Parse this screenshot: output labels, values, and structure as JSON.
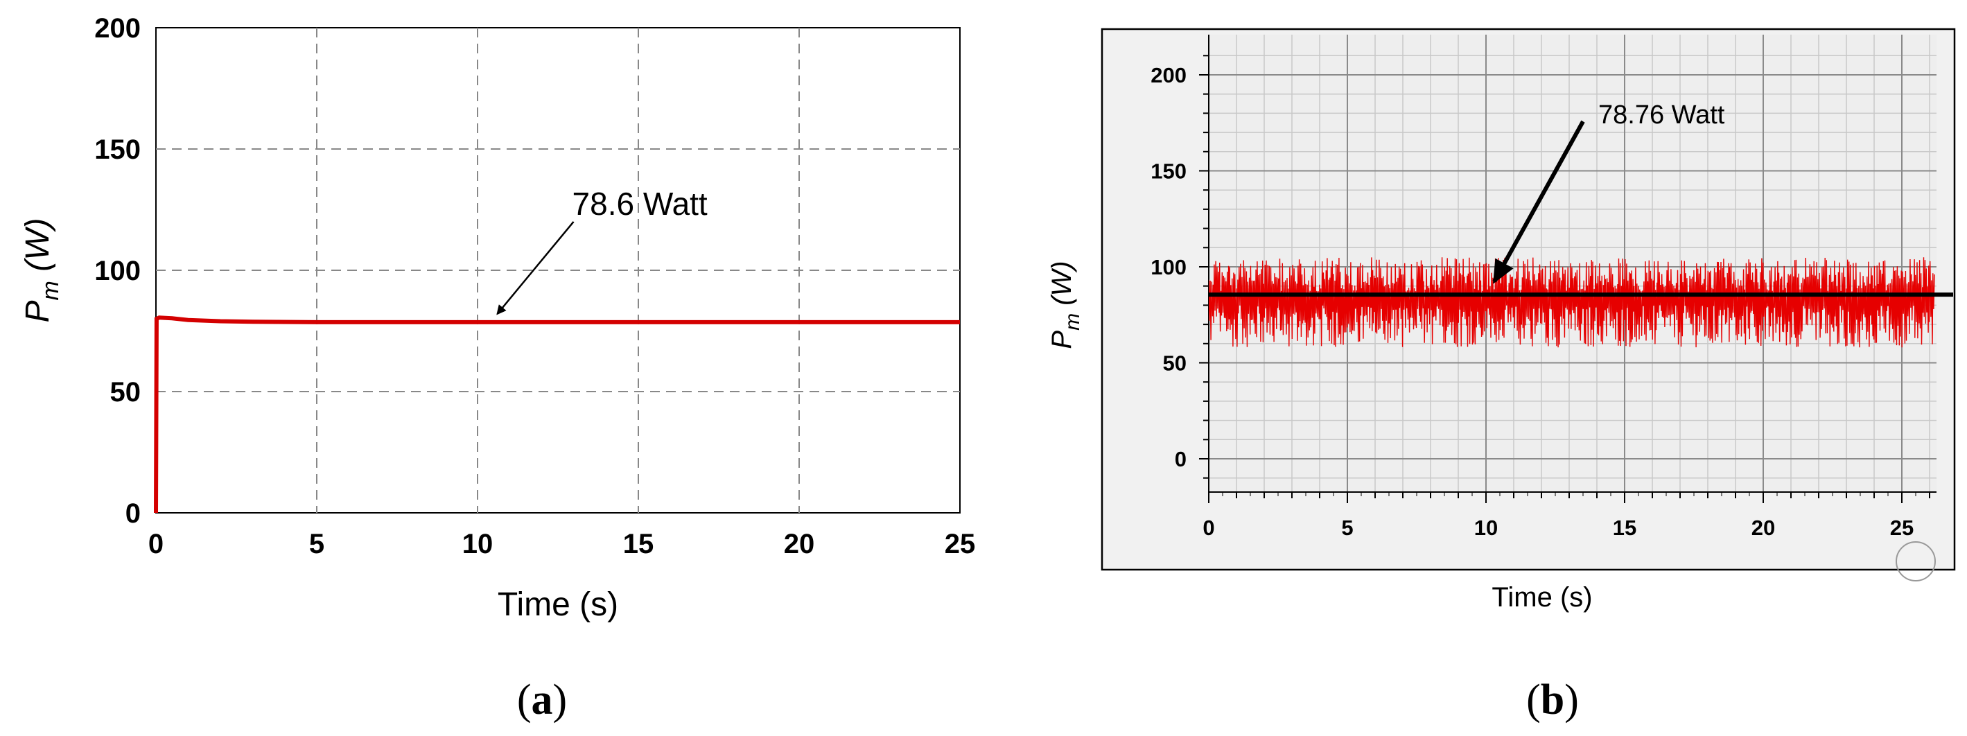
{
  "chart_data": [
    {
      "type": "line",
      "panel_label": "(a)",
      "xlabel": "Time (s)",
      "ylabel_main": "P",
      "ylabel_sub": "m",
      "ylabel_unit": " (W)",
      "xlim": [
        0,
        25
      ],
      "ylim": [
        0,
        200
      ],
      "xticks": [
        "0",
        "5",
        "10",
        "15",
        "20",
        "25"
      ],
      "yticks": [
        "0",
        "50",
        "100",
        "150",
        "200"
      ],
      "grid": true,
      "grid_style": "dashed",
      "series": [
        {
          "color": "#d40000",
          "x": [
            0,
            0.02,
            0.1,
            0.5,
            1,
            2,
            3,
            5,
            10,
            15,
            20,
            25
          ],
          "y": [
            0,
            80,
            80.5,
            80.2,
            79.5,
            79.0,
            78.8,
            78.6,
            78.6,
            78.6,
            78.6,
            78.6
          ]
        }
      ],
      "annotation": {
        "text": "78.6 Watt",
        "x": 10.4,
        "y": 78.6
      }
    },
    {
      "type": "line",
      "panel_label": "(b)",
      "xlabel": "Time (s)",
      "ylabel_main": "P",
      "ylabel_sub": "m",
      "ylabel_unit": " (W)",
      "xlim": [
        0,
        26
      ],
      "ylim": [
        0,
        200
      ],
      "xticks": [
        "0",
        "5",
        "10",
        "15",
        "20",
        "25"
      ],
      "yticks": [
        "0",
        "50",
        "100",
        "150",
        "200"
      ],
      "grid": true,
      "series": [
        {
          "color": "#e60000",
          "description_range": [
            60,
            105
          ],
          "signal": "noisy oscillation between about 58 and 105 W"
        },
        {
          "color": "#000000",
          "y": 85.5,
          "kind": "horizontal reference line"
        }
      ],
      "annotation": {
        "text": "78.76 Watt",
        "x": 10.2,
        "y": 88
      }
    }
  ]
}
